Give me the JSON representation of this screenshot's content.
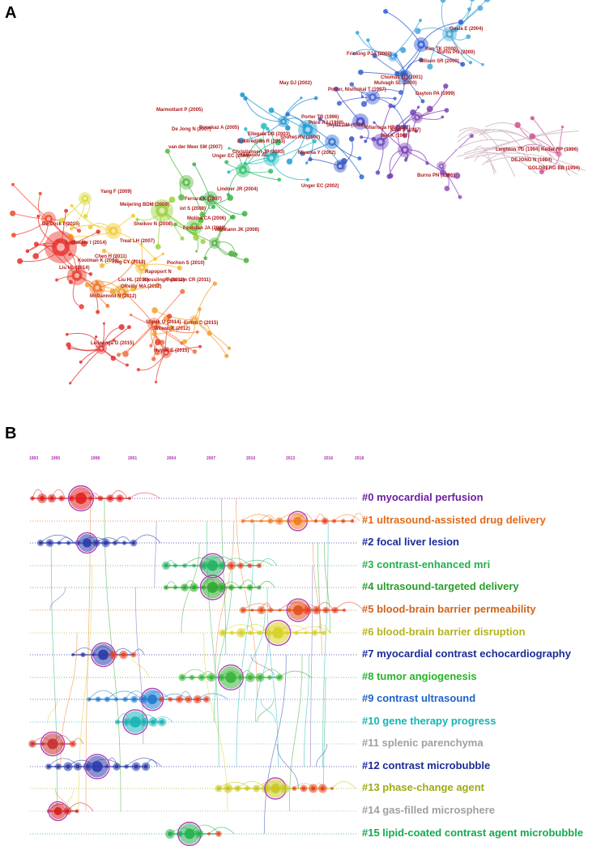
{
  "panels": {
    "a": "A",
    "b": "B"
  },
  "panel_a": {
    "author_labels": [
      "Quaia E (2004)",
      "Kim TK (2000)",
      "Burns PN (2000)",
      "Wilson SR (2000)",
      "Frinking PJA (2000)",
      "Chomas JE (2001)",
      "Mulvagh SL (2000)",
      "Dayton PA (1999)",
      "May DJ (2002)",
      "Porter, Nishiokal T (1997)",
      "Porter TR (1996)",
      "Villarraga HR (1997)",
      "Price RJ (1998)",
      "Skyba DM (1998)",
      "Kaul S (1997)",
      "Wei K (1997)",
      "Burns PN (1996)",
      "Leighton TG (1994)",
      "Kedar RP (1996)",
      "DEJONG N (1994)",
      "GOLDBERG BB (1994)",
      "Marmottant P (2005)",
      "De Jong N (2007)",
      "Bouakaz A (2005)",
      "Ellegala DB (2003)",
      "Bekeredjian R (2003)",
      "Shohet RV (2000)",
      "van der Meer SM (2007)",
      "Christiansen JP (2003)",
      "Unger EC (2004)",
      "Klibanov AL",
      "Miyama Y (2002)",
      "Yang F (2009)",
      "Ferrara K (2007)",
      "Lindner JR (2004)",
      "Meijering BDM (2009)",
      "iot S (2008)",
      "Unger EC (2002)",
      "De Cock I (2015)",
      "Molina CA (2006)",
      "Sheikov N (2008)",
      "Feshitan JA (2009)",
      "Willmann JK (2008)",
      "Lentacker I (2014)",
      "Treat LH (2007)",
      "Chen H (2011)",
      "Kooiman K (2014)",
      "Ting CY (2012)",
      "Pochon S (2010)",
      "Liu HL (2014)",
      "Rapoport N",
      "Kiessling F (2012)",
      "Liu HL (2010)",
      "Anderson CR (2011)",
      "OReilly MA (2012)",
      "McDannold N (2012)",
      "Shpak O (2014)",
      "Errico C (2015)",
      "Wilson K (2012)",
      "Lelinenga G (2015)",
      "Huynh E (2015)"
    ]
  },
  "panel_b": {
    "year_axis": [
      "1993",
      "1995",
      "1998",
      "2001",
      "2004",
      "2007",
      "2010",
      "2013",
      "2016",
      "2018"
    ],
    "clusters": [
      {
        "label": "#0 myocardial perfusion",
        "color": "#6b1fa0"
      },
      {
        "label": "#1 ultrasound-assisted drug delivery",
        "color": "#e06b1a"
      },
      {
        "label": "#2 focal liver lesion",
        "color": "#1a2a9a"
      },
      {
        "label": "#3 contrast-enhanced mri",
        "color": "#22b24c"
      },
      {
        "label": "#4 ultrasound-targeted delivery",
        "color": "#28a028"
      },
      {
        "label": "#5 blood-brain barrier permeability",
        "color": "#d0641c"
      },
      {
        "label": "#6 blood-brain barrier disruption",
        "color": "#b4b41e"
      },
      {
        "label": "#7 myocardial contrast echocardiography",
        "color": "#1a2a9a"
      },
      {
        "label": "#8 tumor angiogenesis",
        "color": "#28b428"
      },
      {
        "label": "#9 contrast ultrasound",
        "color": "#1e64c8"
      },
      {
        "label": "#10 gene therapy progress",
        "color": "#14b4b4"
      },
      {
        "label": "#11 splenic parenchyma",
        "color": "#a0a0a0"
      },
      {
        "label": "#12 contrast microbubble",
        "color": "#1a2a9a"
      },
      {
        "label": "#13 phase-change agent",
        "color": "#a0aa14"
      },
      {
        "label": "#14 gas-filled microsphere",
        "color": "#a0a0a0"
      },
      {
        "label": "#15 lipid-coated contrast agent microbubble",
        "color": "#14aa50"
      }
    ]
  }
}
